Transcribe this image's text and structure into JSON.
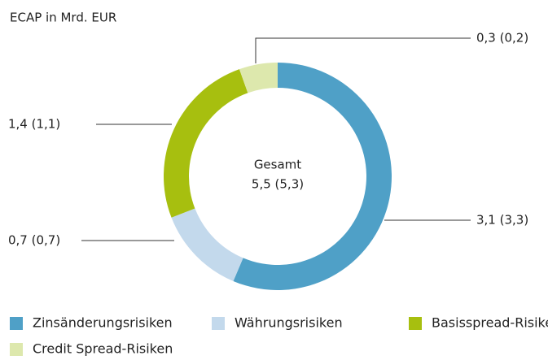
{
  "chart_data": {
    "type": "donut",
    "title": "ECAP in Mrd. EUR",
    "categories": [
      "Zinsänderungsrisiken",
      "Währungsrisiken",
      "Basisspread-Risiken",
      "Credit Spread-Risiken"
    ],
    "values": [
      3.1,
      0.7,
      1.4,
      0.3
    ],
    "value_labels": [
      "3,1 (3,3)",
      "0,7 (0,7)",
      "1,4 (1,1)",
      "0,3 (0,2)"
    ],
    "colors": [
      "#4fa0c7",
      "#c3d9ec",
      "#a7bf0f",
      "#dde8ad"
    ],
    "center_label": {
      "title": "Gesamt",
      "text": "5,5 (5,3)"
    }
  }
}
